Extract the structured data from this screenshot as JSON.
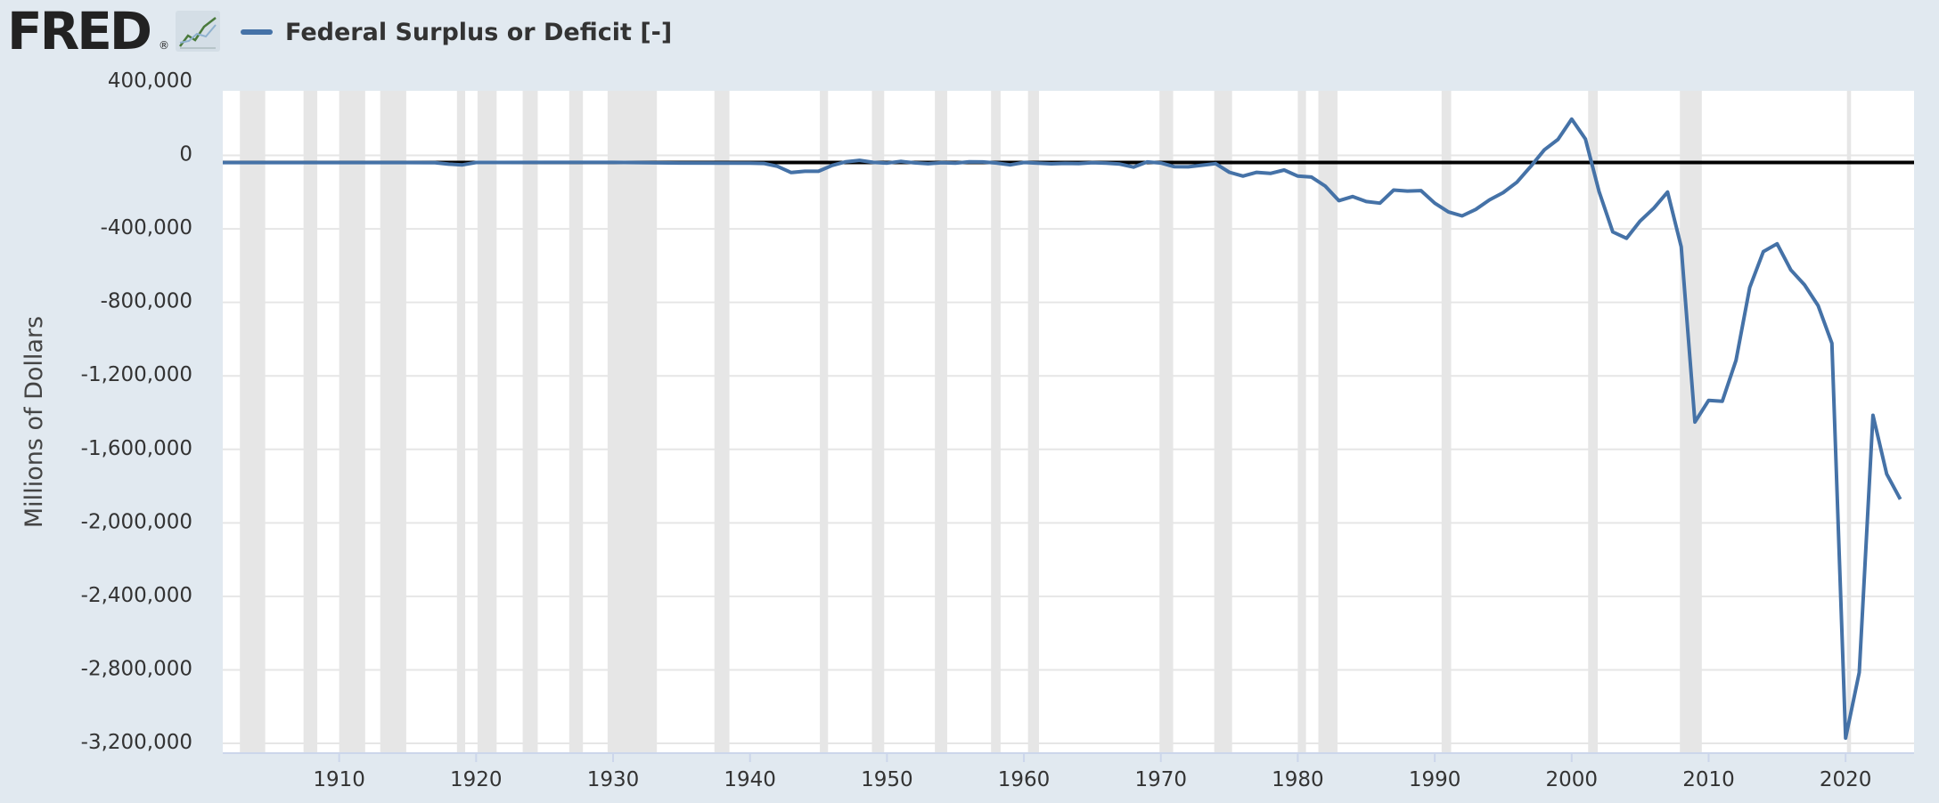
{
  "header": {
    "logo_text": "FRED",
    "logo_reg": "®",
    "logo_icon": "line-chart-icon",
    "legend_label": "Federal Surplus or Deficit [-]"
  },
  "colors": {
    "series": "#4572a7",
    "plot_bg": "#ffffff",
    "page_bg": "#e1e9f0",
    "recession": "#e6e6e6",
    "zero_line": "#000000"
  },
  "chart_data": {
    "type": "line",
    "title": "",
    "xlabel": "",
    "ylabel": "Millions of Dollars",
    "xlim": [
      1901.5,
      2025
    ],
    "ylim": [
      -3200000,
      400000
    ],
    "yticks": [
      400000,
      0,
      -400000,
      -800000,
      -1200000,
      -1600000,
      -2000000,
      -2400000,
      -2800000,
      -3200000
    ],
    "ytick_labels": [
      "400,000",
      "0",
      "-400,000",
      "-800,000",
      "-1,200,000",
      "-1,600,000",
      "-2,000,000",
      "-2,400,000",
      "-2,800,000",
      "-3,200,000"
    ],
    "xticks": [
      1910,
      1920,
      1930,
      1940,
      1950,
      1960,
      1970,
      1980,
      1990,
      2000,
      2010,
      2020
    ],
    "xtick_labels": [
      "1910",
      "1920",
      "1930",
      "1940",
      "1950",
      "1960",
      "1970",
      "1980",
      "1990",
      "2000",
      "2010",
      "2020"
    ],
    "grid": "horizontal",
    "legend_position": "top-left",
    "recessions": [
      [
        1902.75,
        1904.6
      ],
      [
        1907.4,
        1908.4
      ],
      [
        1910.0,
        1911.9
      ],
      [
        1913.0,
        1914.9
      ],
      [
        1918.6,
        1919.2
      ],
      [
        1920.1,
        1921.5
      ],
      [
        1923.4,
        1924.5
      ],
      [
        1926.8,
        1927.8
      ],
      [
        1929.6,
        1933.2
      ],
      [
        1937.4,
        1938.5
      ],
      [
        1945.1,
        1945.7
      ],
      [
        1948.9,
        1949.8
      ],
      [
        1953.5,
        1954.4
      ],
      [
        1957.6,
        1958.3
      ],
      [
        1960.3,
        1961.1
      ],
      [
        1969.9,
        1970.9
      ],
      [
        1973.9,
        1975.2
      ],
      [
        1980.0,
        1980.6
      ],
      [
        1981.5,
        1982.9
      ],
      [
        1990.5,
        1991.2
      ],
      [
        2001.2,
        2001.9
      ],
      [
        2007.9,
        2009.5
      ],
      [
        2020.1,
        2020.4
      ]
    ],
    "zero_line": 0,
    "series": [
      {
        "name": "Federal Surplus or Deficit [-]",
        "x": [
          1901,
          1905,
          1910,
          1915,
          1917,
          1918,
          1919,
          1920,
          1921,
          1925,
          1930,
          1935,
          1940,
          1941,
          1942,
          1943,
          1944,
          1945,
          1946,
          1947,
          1948,
          1949,
          1950,
          1951,
          1952,
          1953,
          1954,
          1955,
          1956,
          1957,
          1958,
          1959,
          1960,
          1961,
          1962,
          1963,
          1964,
          1965,
          1966,
          1967,
          1968,
          1969,
          1970,
          1971,
          1972,
          1973,
          1974,
          1975,
          1976,
          1977,
          1978,
          1979,
          1980,
          1981,
          1982,
          1983,
          1984,
          1985,
          1986,
          1987,
          1988,
          1989,
          1990,
          1991,
          1992,
          1993,
          1994,
          1995,
          1996,
          1997,
          1998,
          1999,
          2000,
          2001,
          2002,
          2003,
          2004,
          2005,
          2006,
          2007,
          2008,
          2009,
          2010,
          2011,
          2012,
          2013,
          2014,
          2015,
          2016,
          2017,
          2018,
          2019,
          2020,
          2021,
          2022,
          2023,
          2024
        ],
        "values": [
          0,
          0,
          0,
          0,
          -1000,
          -9000,
          -13000,
          291,
          509,
          717,
          738,
          -2602,
          -2920,
          -4941,
          -20503,
          -54554,
          -47557,
          -47553,
          -15936,
          4018,
          11796,
          580,
          -3119,
          6102,
          -1519,
          -6493,
          -1154,
          -2993,
          3947,
          3412,
          -2769,
          -12849,
          301,
          -3335,
          -7146,
          -4756,
          -5915,
          -1411,
          -3698,
          -8643,
          -25161,
          3242,
          -2842,
          -23033,
          -23373,
          -14908,
          -6135,
          -53242,
          -73732,
          -53659,
          -59185,
          -40726,
          -73830,
          -78968,
          -127977,
          -207802,
          -185367,
          -212308,
          -221227,
          -149730,
          -155178,
          -152639,
          -221036,
          -269238,
          -290321,
          -255051,
          -203186,
          -163952,
          -107431,
          -21884,
          69270,
          125610,
          236241,
          128236,
          -157758,
          -377585,
          -412727,
          -318346,
          -248181,
          -160701,
          -458553,
          -1412688,
          -1294373,
          -1299599,
          -1076573,
          -679775,
          -484602,
          -441960,
          -584651,
          -665712,
          -779137,
          -983564,
          -3132461,
          -2775320,
          -1375969,
          -1695246,
          -1832813
        ]
      }
    ]
  }
}
